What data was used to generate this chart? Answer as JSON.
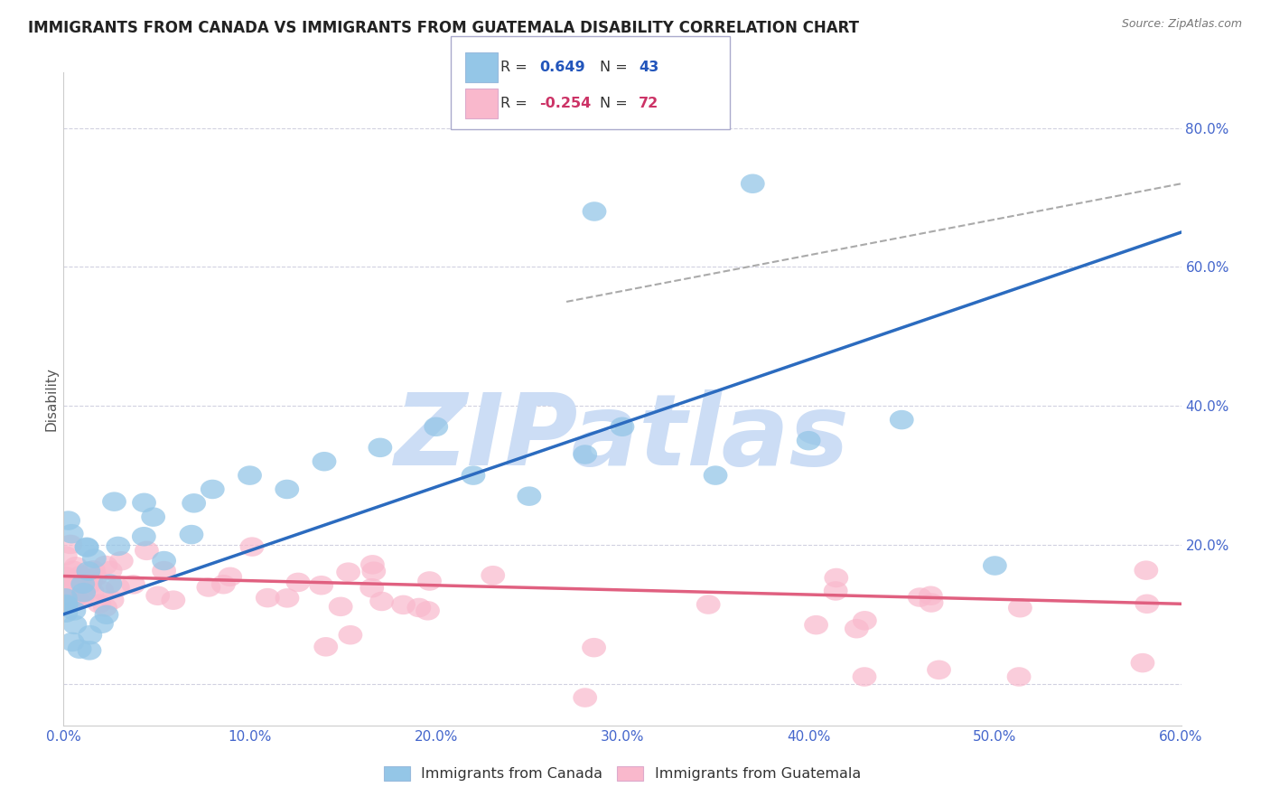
{
  "title": "IMMIGRANTS FROM CANADA VS IMMIGRANTS FROM GUATEMALA DISABILITY CORRELATION CHART",
  "source": "Source: ZipAtlas.com",
  "ylabel": "Disability",
  "xlim": [
    0.0,
    0.6
  ],
  "ylim": [
    -0.06,
    0.88
  ],
  "xticks": [
    0.0,
    0.1,
    0.2,
    0.3,
    0.4,
    0.5,
    0.6
  ],
  "xtick_labels": [
    "0.0%",
    "10.0%",
    "20.0%",
    "30.0%",
    "40.0%",
    "50.0%",
    "60.0%"
  ],
  "yticks": [
    0.0,
    0.2,
    0.4,
    0.6,
    0.8
  ],
  "ytick_labels": [
    "",
    "20.0%",
    "40.0%",
    "60.0%",
    "80.0%"
  ],
  "legend_R_canada": "R =  0.649",
  "legend_N_canada": "N = 43",
  "legend_R_guatemala": "R = -0.254",
  "legend_N_guatemala": "N = 72",
  "canada_color": "#94c6e7",
  "guatemala_color": "#f9b8cc",
  "canada_line_color": "#2b6bbf",
  "guatemala_line_color": "#e06080",
  "watermark": "ZIPatlas",
  "watermark_color": "#ccddf5",
  "canada_line_x0": 0.0,
  "canada_line_y0": 0.1,
  "canada_line_x1": 0.6,
  "canada_line_y1": 0.65,
  "dash_line_x0": 0.27,
  "dash_line_y0": 0.55,
  "dash_line_x1": 0.6,
  "dash_line_y1": 0.72,
  "guate_line_x0": 0.0,
  "guate_line_y0": 0.155,
  "guate_line_x1": 0.6,
  "guate_line_y1": 0.115
}
